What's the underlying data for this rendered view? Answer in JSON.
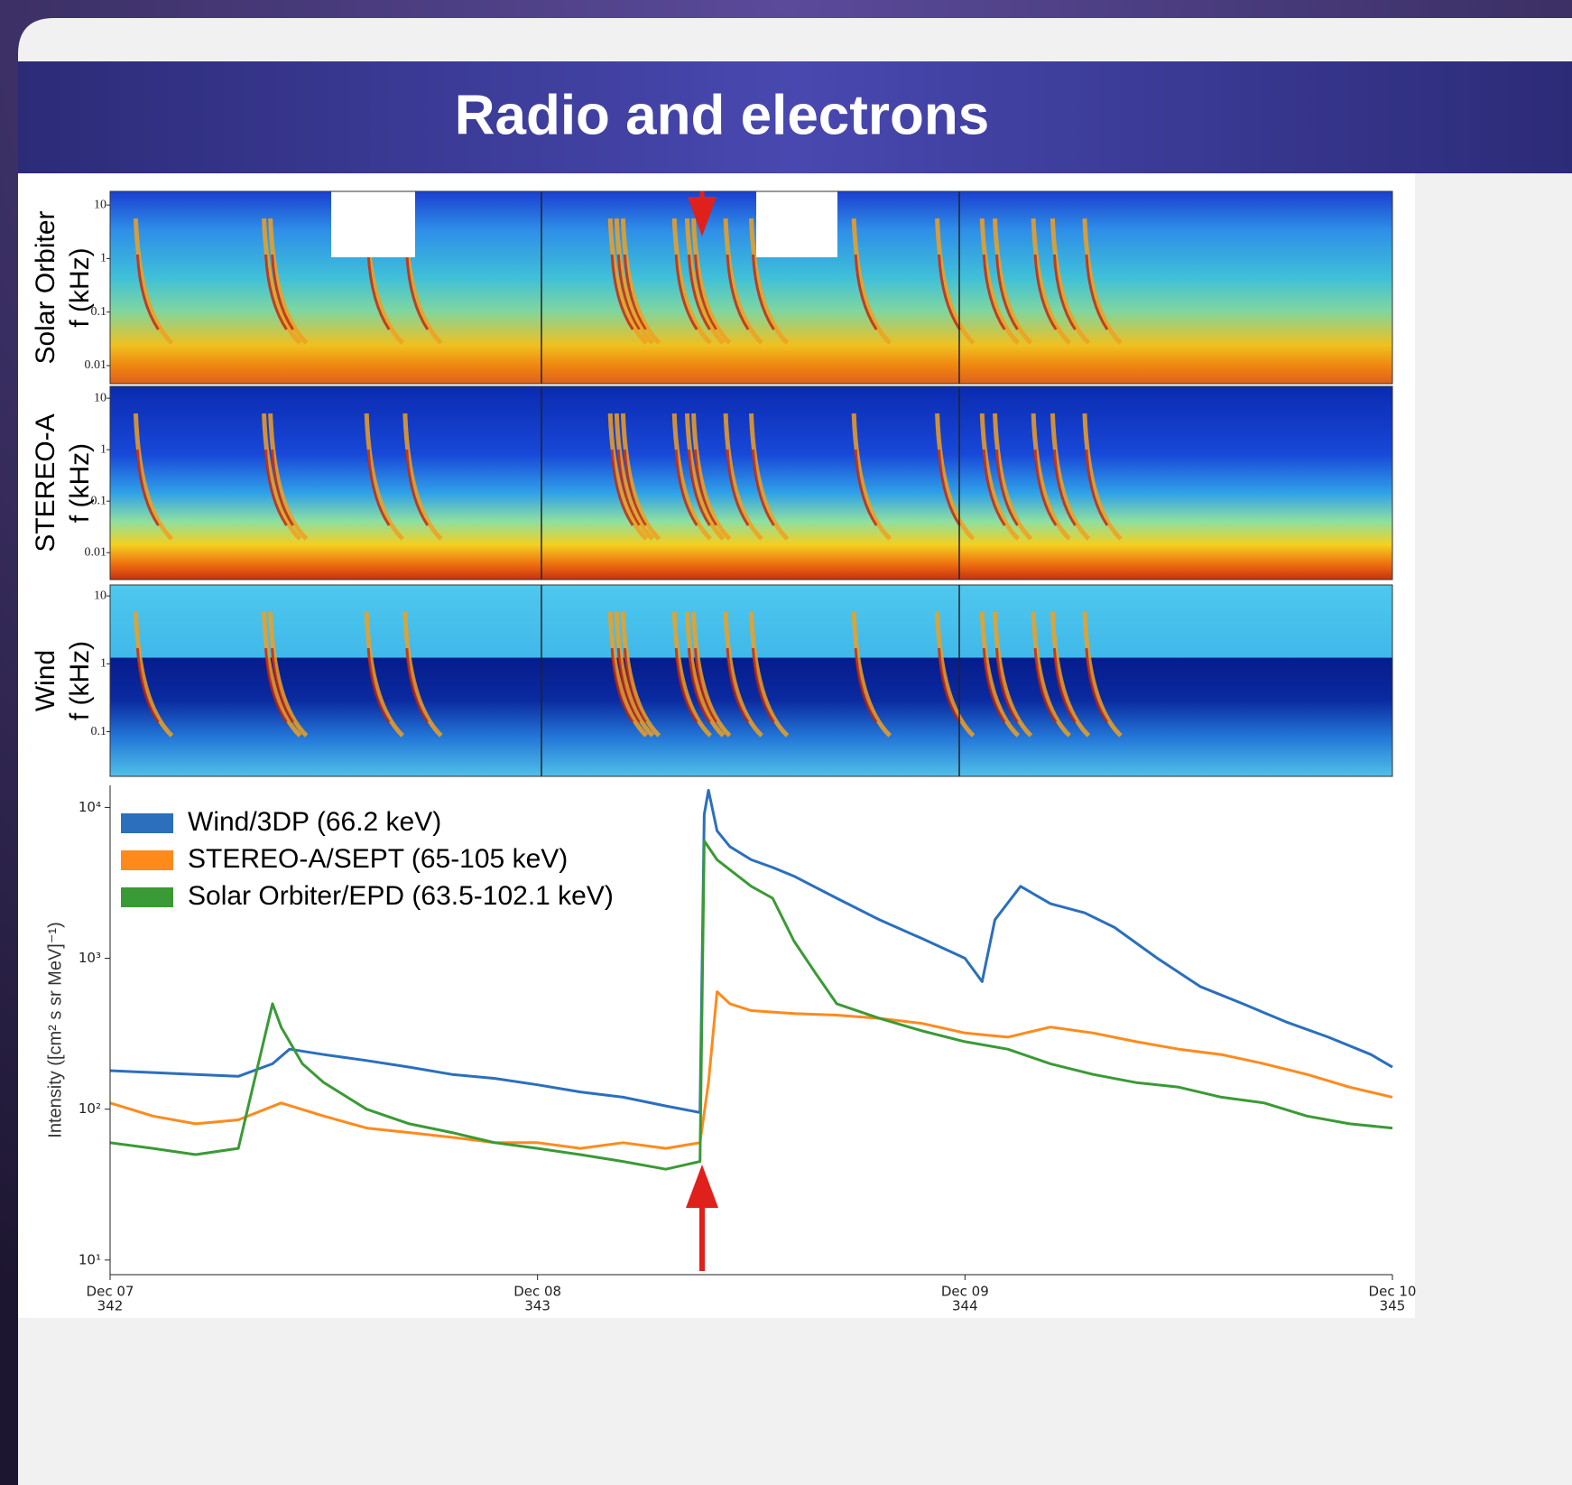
{
  "slide_title": "Radio and electrons",
  "chart_data": [
    {
      "type": "spectrogram",
      "ylabel": [
        "Solar Orbiter",
        "f (kHz)"
      ],
      "log_y": true,
      "ylim": [
        0.0046,
        18
      ],
      "yticks": [
        10,
        1,
        0.1,
        0.01
      ]
    },
    {
      "type": "spectrogram",
      "ylabel": [
        "STEREO-A",
        "f (kHz)"
      ],
      "log_y": true,
      "ylim": [
        0.003,
        17
      ],
      "yticks": [
        10,
        1,
        0.1,
        0.01
      ]
    },
    {
      "type": "spectrogram",
      "ylabel": [
        "Wind",
        "f (kHz)"
      ],
      "log_y": true,
      "ylim": [
        0.022,
        14.5
      ],
      "yticks": [
        10,
        1,
        0.1
      ]
    },
    {
      "type": "line",
      "ylabel": "Intensity ([cm² s sr MeV]⁻¹)",
      "log_y": true,
      "ylim": [
        8,
        14000
      ],
      "yticks": [
        {
          "value": 10,
          "label": "10¹"
        },
        {
          "value": 100,
          "label": "10²"
        },
        {
          "value": 1000,
          "label": "10³"
        },
        {
          "value": 10000,
          "label": "10⁴"
        }
      ],
      "xlim": [
        342,
        345
      ],
      "xticks": [
        342,
        343,
        344,
        345
      ],
      "xtick_dates": [
        "Dec 07",
        "Dec 08",
        "Dec 09",
        "Dec 10"
      ],
      "legend": "upper left",
      "series": [
        {
          "name": "Wind/3DP (66.2 keV)",
          "color": "#2b6fbd",
          "x": [
            342,
            342.1,
            342.2,
            342.3,
            342.38,
            342.42,
            342.5,
            342.6,
            342.7,
            342.8,
            342.9,
            343,
            343.1,
            343.2,
            343.3,
            343.38,
            343.39,
            343.4,
            343.42,
            343.45,
            343.5,
            343.55,
            343.6,
            343.7,
            343.8,
            343.9,
            344,
            344.04,
            344.07,
            344.13,
            344.2,
            344.28,
            344.35,
            344.45,
            344.55,
            344.65,
            344.75,
            344.85,
            344.95,
            345
          ],
          "values": [
            180,
            175,
            170,
            165,
            200,
            250,
            230,
            210,
            190,
            170,
            160,
            145,
            130,
            120,
            105,
            95,
            9000,
            13000,
            7000,
            5500,
            4500,
            4000,
            3500,
            2500,
            1800,
            1350,
            1000,
            700,
            1800,
            3000,
            2300,
            2000,
            1600,
            1000,
            650,
            500,
            380,
            300,
            230,
            190
          ]
        },
        {
          "name": "STEREO-A/SEPT (65-105 keV)",
          "color": "#ff8a1c",
          "x": [
            342,
            342.1,
            342.2,
            342.3,
            342.4,
            342.5,
            342.6,
            342.7,
            342.8,
            342.9,
            343,
            343.1,
            343.2,
            343.3,
            343.38,
            343.4,
            343.42,
            343.45,
            343.5,
            343.6,
            343.7,
            343.8,
            343.9,
            344,
            344.1,
            344.2,
            344.3,
            344.4,
            344.5,
            344.6,
            344.7,
            344.8,
            344.9,
            345
          ],
          "values": [
            110,
            90,
            80,
            85,
            110,
            90,
            75,
            70,
            65,
            60,
            60,
            55,
            60,
            55,
            60,
            150,
            600,
            500,
            450,
            430,
            420,
            400,
            370,
            320,
            300,
            350,
            320,
            280,
            250,
            230,
            200,
            170,
            140,
            120
          ]
        },
        {
          "name": "Solar Orbiter/EPD (63.5-102.1 keV)",
          "color": "#3a9a35",
          "x": [
            342,
            342.1,
            342.2,
            342.3,
            342.38,
            342.4,
            342.45,
            342.5,
            342.6,
            342.7,
            342.8,
            342.9,
            343,
            343.1,
            343.2,
            343.3,
            343.38,
            343.39,
            343.42,
            343.5,
            343.55,
            343.6,
            343.65,
            343.7,
            343.8,
            343.9,
            344,
            344.1,
            344.2,
            344.3,
            344.4,
            344.5,
            344.6,
            344.7,
            344.8,
            344.9,
            345
          ],
          "values": [
            60,
            55,
            50,
            55,
            500,
            350,
            200,
            150,
            100,
            80,
            70,
            60,
            55,
            50,
            45,
            40,
            45,
            6000,
            4500,
            3000,
            2500,
            1300,
            800,
            500,
            400,
            330,
            280,
            250,
            200,
            170,
            150,
            140,
            120,
            110,
            90,
            80,
            75
          ]
        }
      ]
    }
  ]
}
